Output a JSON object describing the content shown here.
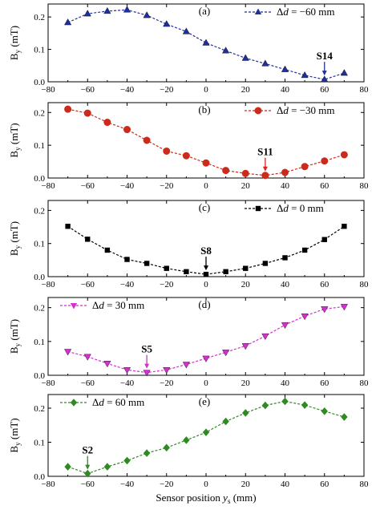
{
  "chart_data": [
    {
      "type": "line",
      "panel": "(a)",
      "x": [
        -70,
        -60,
        -50,
        -40,
        -30,
        -20,
        -10,
        0,
        10,
        20,
        30,
        40,
        50,
        60,
        70
      ],
      "series": [
        {
          "name": "Δd = −60 mm",
          "legend_prefix": "Δ",
          "legend_var": "d",
          "legend_suffix": " = −60 mm",
          "color": "#1f2f9e",
          "marker": "triangle-up",
          "values": [
            0.183,
            0.21,
            0.218,
            0.222,
            0.205,
            0.178,
            0.155,
            0.12,
            0.096,
            0.073,
            0.056,
            0.038,
            0.02,
            0.007,
            0.027
          ]
        }
      ],
      "annotation": {
        "label": "S14",
        "x": 60,
        "color": "#1f2f9e"
      },
      "ylabel": "By (mT)",
      "ylim": [
        0,
        0.24
      ],
      "yticks": [
        0.0,
        0.1,
        0.2
      ],
      "ytick_labels": [
        "0.0",
        "0.1",
        "0.2"
      ],
      "xlim": [
        -80,
        80
      ],
      "xticks": [
        -80,
        -60,
        -40,
        -20,
        0,
        20,
        40,
        60,
        80
      ],
      "xtick_labels": [
        "−80",
        "−60",
        "−40",
        "−20",
        "0",
        "20",
        "40",
        "60",
        "80"
      ],
      "legend_position": "top-right",
      "grid": false
    },
    {
      "type": "line",
      "panel": "(b)",
      "x": [
        -70,
        -60,
        -50,
        -40,
        -30,
        -20,
        -10,
        0,
        10,
        20,
        30,
        40,
        50,
        60,
        70
      ],
      "series": [
        {
          "name": "Δd = −30 mm",
          "legend_prefix": "Δ",
          "legend_var": "d",
          "legend_suffix": " = −30 mm",
          "color": "#cc2a1a",
          "marker": "circle",
          "values": [
            0.21,
            0.198,
            0.17,
            0.148,
            0.115,
            0.082,
            0.068,
            0.046,
            0.023,
            0.014,
            0.008,
            0.017,
            0.035,
            0.052,
            0.071
          ]
        }
      ],
      "annotation": {
        "label": "S11",
        "x": 30,
        "color": "#cc2a1a"
      },
      "ylabel": "By (mT)",
      "ylim": [
        0,
        0.23
      ],
      "yticks": [
        0.0,
        0.1,
        0.2
      ],
      "ytick_labels": [
        "0.0",
        "0.1",
        "0.2"
      ],
      "xlim": [
        -80,
        80
      ],
      "xticks": [
        -80,
        -60,
        -40,
        -20,
        0,
        20,
        40,
        60,
        80
      ],
      "xtick_labels": [
        "−80",
        "−60",
        "−40",
        "−20",
        "0",
        "20",
        "40",
        "60",
        "80"
      ],
      "legend_position": "top-right",
      "grid": false
    },
    {
      "type": "line",
      "panel": "(c)",
      "x": [
        -70,
        -60,
        -50,
        -40,
        -30,
        -20,
        -10,
        0,
        10,
        20,
        30,
        40,
        50,
        60,
        70
      ],
      "series": [
        {
          "name": "Δd = 0 mm",
          "legend_prefix": "Δ",
          "legend_var": "d",
          "legend_suffix": " = 0 mm",
          "color": "#000000",
          "marker": "square",
          "values": [
            0.152,
            0.113,
            0.08,
            0.052,
            0.04,
            0.025,
            0.015,
            0.007,
            0.015,
            0.025,
            0.04,
            0.057,
            0.08,
            0.112,
            0.152
          ]
        }
      ],
      "annotation": {
        "label": "S8",
        "x": 0,
        "color": "#000000"
      },
      "ylabel": "By (mT)",
      "ylim": [
        0,
        0.23
      ],
      "yticks": [
        0.0,
        0.1,
        0.2
      ],
      "ytick_labels": [
        "0.0",
        "0.1",
        "0.2"
      ],
      "xlim": [
        -80,
        80
      ],
      "xticks": [
        -80,
        -60,
        -40,
        -20,
        0,
        20,
        40,
        60,
        80
      ],
      "xtick_labels": [
        "−80",
        "−60",
        "−40",
        "−20",
        "0",
        "20",
        "40",
        "60",
        "80"
      ],
      "legend_position": "top-right",
      "grid": false
    },
    {
      "type": "line",
      "panel": "(d)",
      "x": [
        -70,
        -60,
        -50,
        -40,
        -30,
        -20,
        -10,
        0,
        10,
        20,
        30,
        40,
        50,
        60,
        70
      ],
      "series": [
        {
          "name": "Δd = 30 mm",
          "legend_prefix": "Δ",
          "legend_var": "d",
          "legend_suffix": " = 30 mm",
          "color": "#d62fd1",
          "marker": "triangle-down",
          "values": [
            0.07,
            0.055,
            0.035,
            0.016,
            0.008,
            0.016,
            0.032,
            0.05,
            0.068,
            0.087,
            0.116,
            0.149,
            0.175,
            0.196,
            0.203
          ]
        }
      ],
      "annotation": {
        "label": "S5",
        "x": -30,
        "color": "#d62fd1"
      },
      "ylabel": "By (mT)",
      "ylim": [
        0,
        0.23
      ],
      "yticks": [
        0.0,
        0.1,
        0.2
      ],
      "ytick_labels": [
        "0.0",
        "0.1",
        "0.2"
      ],
      "xlim": [
        -80,
        80
      ],
      "xticks": [
        -80,
        -60,
        -40,
        -20,
        0,
        20,
        40,
        60,
        80
      ],
      "xtick_labels": [
        "−80",
        "−60",
        "−40",
        "−20",
        "0",
        "20",
        "40",
        "60",
        "80"
      ],
      "legend_position": "top-left",
      "grid": false
    },
    {
      "type": "line",
      "panel": "(e)",
      "x": [
        -70,
        -60,
        -50,
        -40,
        -30,
        -20,
        -10,
        0,
        10,
        20,
        30,
        40,
        50,
        60,
        70
      ],
      "series": [
        {
          "name": "Δd = 60 mm",
          "legend_prefix": "Δ",
          "legend_var": "d",
          "legend_suffix": " = 60 mm",
          "color": "#2f8a22",
          "marker": "diamond",
          "values": [
            0.028,
            0.008,
            0.028,
            0.046,
            0.068,
            0.084,
            0.106,
            0.129,
            0.161,
            0.186,
            0.208,
            0.22,
            0.209,
            0.191,
            0.174
          ]
        }
      ],
      "annotation": {
        "label": "S2",
        "x": -60,
        "color": "#2f8a22"
      },
      "ylabel": "By (mT)",
      "ylim": [
        0,
        0.24
      ],
      "yticks": [
        0.0,
        0.1,
        0.2
      ],
      "ytick_labels": [
        "0.0",
        "0.1",
        "0.2"
      ],
      "xlim": [
        -80,
        80
      ],
      "xticks": [
        -80,
        -60,
        -40,
        -20,
        0,
        20,
        40,
        60,
        80
      ],
      "xtick_labels": [
        "−80",
        "−60",
        "−40",
        "−20",
        "0",
        "20",
        "40",
        "60",
        "80"
      ],
      "xlabel": "Sensor position ys (mm)",
      "legend_position": "top-left",
      "grid": false
    }
  ],
  "xlabel_parts": {
    "prefix": "Sensor position ",
    "var": "y",
    "sub": "s",
    "suffix": " (mm)"
  },
  "ylabel_parts": {
    "main": "B",
    "sub": "y",
    "suffix": " (mT)"
  }
}
